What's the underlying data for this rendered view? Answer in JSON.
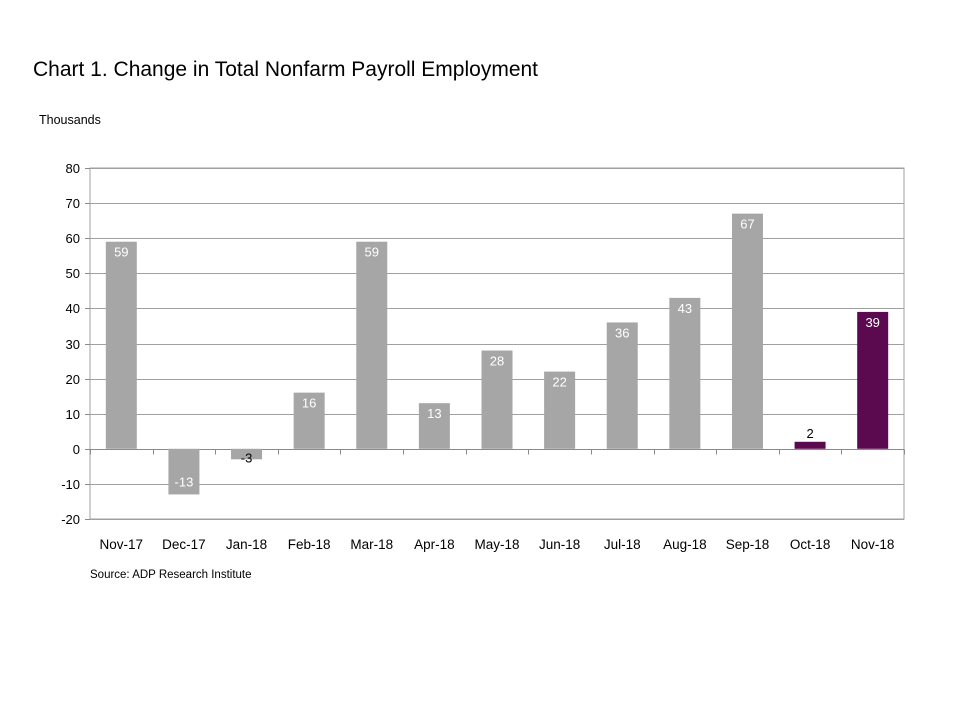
{
  "chart_data": {
    "type": "bar",
    "title": "Chart 1. Change in Total Nonfarm Payroll Employment",
    "ylabel": "Thousands",
    "xlabel": "",
    "source": "Source: ADP Research Institute",
    "ylim": [
      -20,
      80
    ],
    "yticks": [
      80,
      70,
      60,
      50,
      40,
      30,
      20,
      10,
      0,
      -10,
      -20
    ],
    "grid": true,
    "legend": "none",
    "categories": [
      "Nov-17",
      "Dec-17",
      "Jan-18",
      "Feb-18",
      "Mar-18",
      "Apr-18",
      "May-18",
      "Jun-18",
      "Jul-18",
      "Aug-18",
      "Sep-18",
      "Oct-18",
      "Nov-18"
    ],
    "values": [
      59,
      -13,
      -3,
      16,
      59,
      13,
      28,
      22,
      36,
      43,
      67,
      2,
      39
    ],
    "colors": {
      "default_bar": "#a6a6a6",
      "highlight_bar": "#5b0a4f",
      "highlight_categories": [
        "Oct-18",
        "Nov-18"
      ]
    }
  }
}
